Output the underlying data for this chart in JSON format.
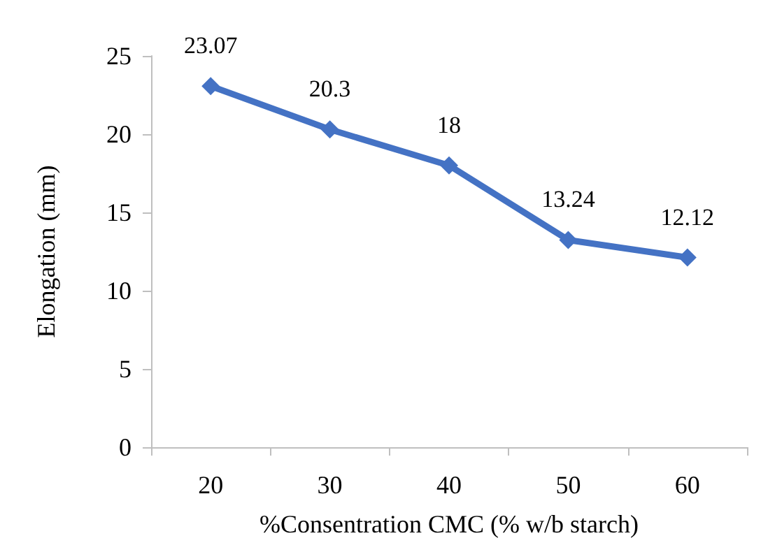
{
  "chart_data": {
    "type": "line",
    "xlabel": "%Consentration CMC (% w/b starch)",
    "ylabel": "Elongation (mm)",
    "categories": [
      "20",
      "30",
      "40",
      "50",
      "60"
    ],
    "series": [
      {
        "color": "#4472c4",
        "values": [
          23.07,
          20.3,
          18,
          13.24,
          12.12
        ]
      }
    ],
    "ylim": [
      0,
      25
    ],
    "yticks": [
      0,
      5,
      10,
      15,
      20,
      25
    ],
    "grid": false,
    "marker": "diamond",
    "line_style": "solid",
    "data_labels": true
  }
}
